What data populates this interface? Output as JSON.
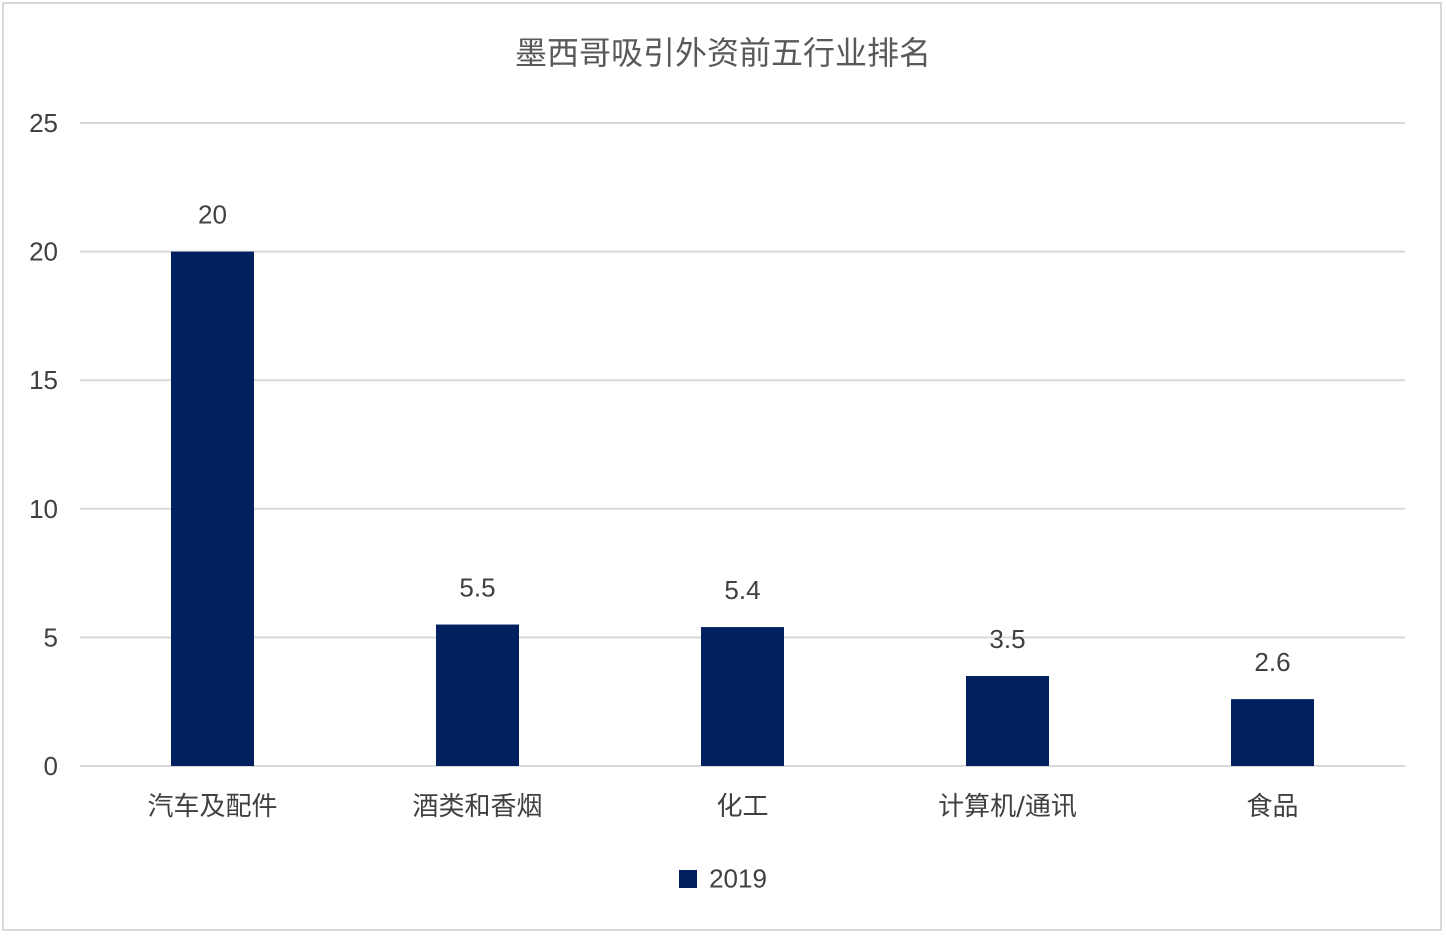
{
  "chart_data": {
    "type": "bar",
    "title": "墨西哥吸引外资前五行业排名",
    "categories": [
      "汽车及配件",
      "酒类和香烟",
      "化工",
      "计算机/通讯",
      "食品"
    ],
    "series": [
      {
        "name": "2019",
        "values": [
          20,
          5.5,
          5.4,
          3.5,
          2.6
        ],
        "color": "#002060"
      }
    ],
    "data_labels": [
      "20",
      "5.5",
      "5.4",
      "3.5",
      "2.6"
    ],
    "ylim": [
      0,
      25
    ],
    "yticks": [
      0,
      5,
      10,
      15,
      20,
      25
    ],
    "grid": true,
    "legend_position": "bottom",
    "xlabel": "",
    "ylabel": ""
  }
}
